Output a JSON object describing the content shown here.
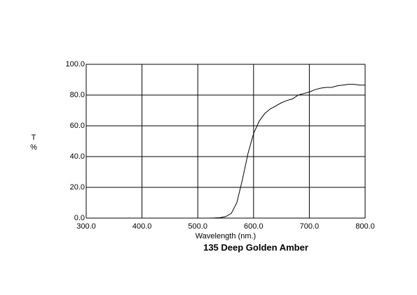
{
  "chart_data": {
    "type": "line",
    "title": "135 Deep Golden Amber",
    "xlabel": "Wavelength (nm.)",
    "ylabel": [
      "T",
      "%"
    ],
    "x": [
      520,
      530,
      540,
      550,
      560,
      570,
      580,
      590,
      600,
      610,
      620,
      630,
      640,
      650,
      660,
      670,
      680,
      690,
      700,
      710,
      720,
      730,
      740,
      750,
      760,
      770,
      780,
      790,
      800
    ],
    "series": [
      {
        "color": "#000000",
        "values": [
          0,
          0.1,
          0.3,
          1,
          3,
          10,
          25,
          42,
          55,
          63,
          68,
          71,
          73,
          75,
          76.5,
          77.5,
          80,
          81,
          82,
          83.5,
          84.5,
          85,
          85,
          86,
          86.5,
          87,
          87,
          86.5,
          86.5
        ]
      }
    ],
    "xlim": [
      300,
      800
    ],
    "ylim": [
      0,
      100
    ],
    "xticks": [
      {
        "value": 300,
        "label": "300.0"
      },
      {
        "value": 400,
        "label": "400.0"
      },
      {
        "value": 500,
        "label": "500.0"
      },
      {
        "value": 600,
        "label": "600.0"
      },
      {
        "value": 700,
        "label": "700.0"
      },
      {
        "value": 800,
        "label": "800.0"
      }
    ],
    "yticks": [
      {
        "value": 0,
        "label": "0.0"
      },
      {
        "value": 20,
        "label": "20.0"
      },
      {
        "value": 40,
        "label": "40.0"
      },
      {
        "value": 60,
        "label": "60.0"
      },
      {
        "value": 80,
        "label": "80.0"
      },
      {
        "value": 100,
        "label": "100.0"
      }
    ],
    "grid": true
  }
}
